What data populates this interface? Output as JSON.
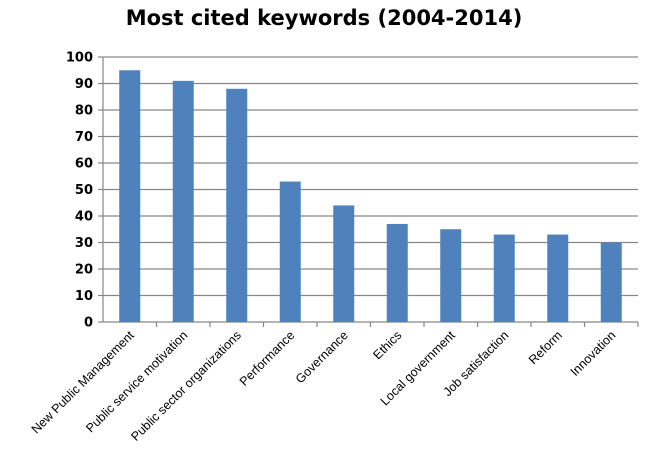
{
  "chart_data": {
    "type": "bar",
    "title": "Most cited keywords (2004-2014)",
    "categories": [
      "New Public Management",
      "Public service motivation",
      "Public sector organizations",
      "Performance",
      "Governance",
      "Ethics",
      "Local government",
      "Job satisfaction",
      "Reform",
      "Innovation"
    ],
    "values": [
      95,
      91,
      88,
      53,
      44,
      37,
      35,
      33,
      33,
      30
    ],
    "ylim": [
      0,
      100
    ],
    "yticks": [
      0,
      10,
      20,
      30,
      40,
      50,
      60,
      70,
      80,
      90,
      100
    ],
    "grid": true,
    "legend": "none",
    "bar_color": "#4f81bd",
    "grid_color": "#868686"
  }
}
